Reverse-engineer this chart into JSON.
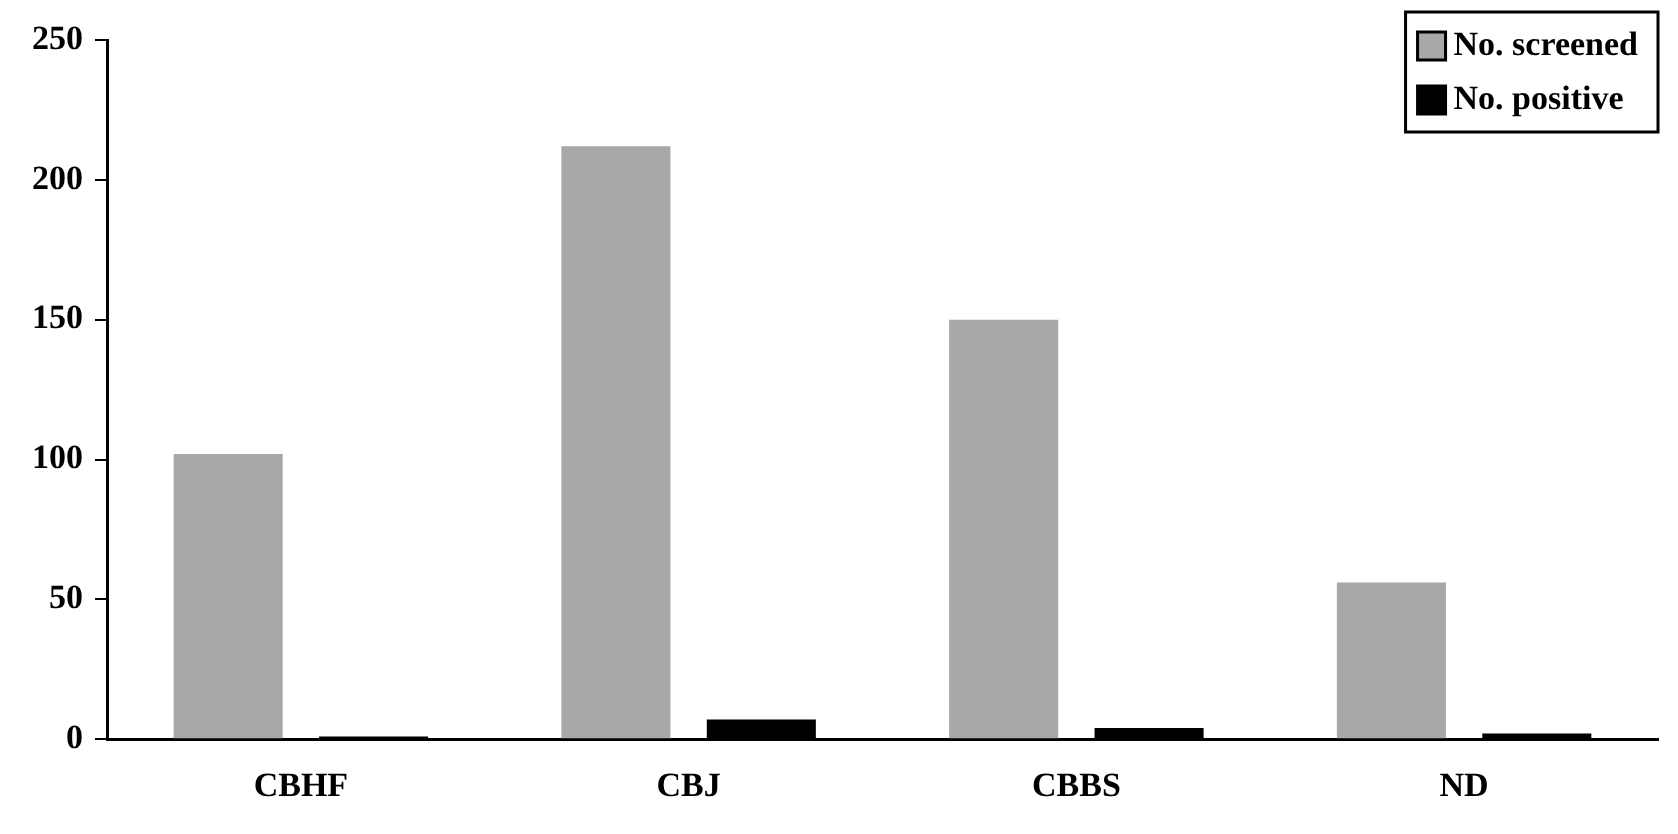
{
  "chart_data": {
    "type": "bar",
    "categories": [
      "CBHF",
      "CBJ",
      "CBBS",
      "ND"
    ],
    "series": [
      {
        "name": "No. screened",
        "color": "#a8a8a8",
        "values": [
          102,
          212,
          150,
          56
        ]
      },
      {
        "name": "No. positive",
        "color": "#000000",
        "values": [
          1,
          7,
          4,
          2
        ]
      }
    ],
    "ylim": [
      0,
      250
    ],
    "yticks": [
      0,
      50,
      100,
      150,
      200,
      250
    ],
    "grid": false,
    "legend": "top right"
  }
}
